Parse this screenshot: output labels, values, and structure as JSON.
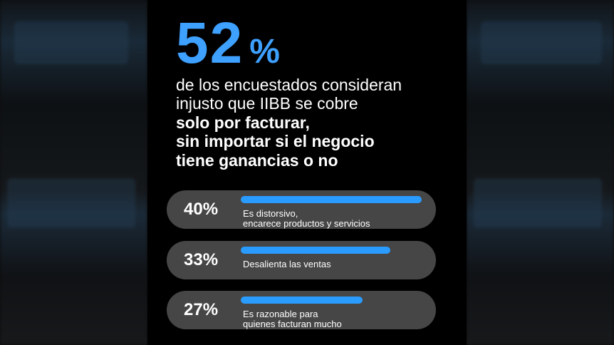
{
  "headline": {
    "value": "52",
    "unit": "%"
  },
  "description": {
    "line1": "de los encuestados consideran",
    "line2": "injusto que IIBB se cobre",
    "bold1": "solo por facturar,",
    "bold2": "sin importar si el negocio",
    "bold3": "tiene ganancias o no"
  },
  "colors": {
    "accent": "#3ea0ff",
    "bar": "#2a9bff",
    "row_bg": "#464646",
    "background": "#000000"
  },
  "chart_data": {
    "type": "bar",
    "title": "52% de los encuestados consideran injusto que IIBB se cobre solo por facturar, sin importar si el negocio tiene ganancias o no",
    "categories": [
      "Es distorsivo, encarece productos y servicios",
      "Desalienta las ventas",
      "Es razonable para quienes facturan mucho"
    ],
    "values": [
      40,
      33,
      27
    ],
    "ylim": [
      0,
      40
    ],
    "items": [
      {
        "value_label": "40%",
        "value": 40,
        "label_lines": [
          "Es distorsivo,",
          "encarece productos y servicios"
        ]
      },
      {
        "value_label": "33%",
        "value": 33,
        "label_lines": [
          "Desalienta las ventas"
        ]
      },
      {
        "value_label": "27%",
        "value": 27,
        "label_lines": [
          "Es razonable para",
          "quienes facturan mucho"
        ]
      }
    ]
  }
}
